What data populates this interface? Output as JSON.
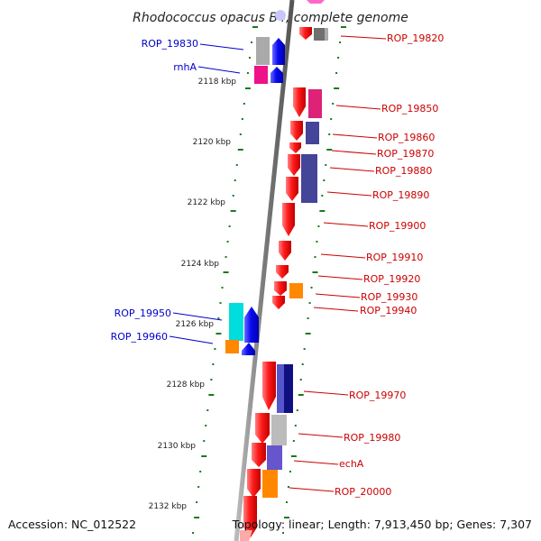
{
  "title": "Rhodococcus opacus B4, complete genome",
  "footer": {
    "accession": "Accession: NC_012522",
    "summary": "Topology: linear; Length: 7,913,450 bp; Genes: 7,307"
  },
  "ticks": [
    "2118 kbp",
    "2120 kbp",
    "2122 kbp",
    "2124 kbp",
    "2126 kbp",
    "2128 kbp",
    "2130 kbp",
    "2132 kbp"
  ],
  "genes": {
    "left": [
      {
        "id": "ROP_19830",
        "color": "#0000cc"
      },
      {
        "id": "rnhA",
        "color": "#0000cc"
      },
      {
        "id": "ROP_19950",
        "color": "#0000cc"
      },
      {
        "id": "ROP_19960",
        "color": "#0000cc"
      }
    ],
    "right": [
      {
        "id": "ROP_19820",
        "color": "#cc0000"
      },
      {
        "id": "ROP_19850",
        "color": "#cc0000"
      },
      {
        "id": "ROP_19860",
        "color": "#cc0000"
      },
      {
        "id": "ROP_19870",
        "color": "#cc0000"
      },
      {
        "id": "ROP_19880",
        "color": "#cc0000"
      },
      {
        "id": "ROP_19890",
        "color": "#cc0000"
      },
      {
        "id": "ROP_19900",
        "color": "#cc0000"
      },
      {
        "id": "ROP_19910",
        "color": "#cc0000"
      },
      {
        "id": "ROP_19920",
        "color": "#cc0000"
      },
      {
        "id": "ROP_19930",
        "color": "#cc0000"
      },
      {
        "id": "ROP_19940",
        "color": "#cc0000"
      },
      {
        "id": "ROP_19970",
        "color": "#cc0000"
      },
      {
        "id": "ROP_19980",
        "color": "#cc0000"
      },
      {
        "id": "echA",
        "color": "#cc0000"
      },
      {
        "id": "ROP_20000",
        "color": "#cc0000"
      }
    ]
  },
  "colors": {
    "forward_strand": "#0000ee",
    "reverse_strand": "#ee0000",
    "backbone": "#888888",
    "ticks": "#1a7a1a"
  }
}
